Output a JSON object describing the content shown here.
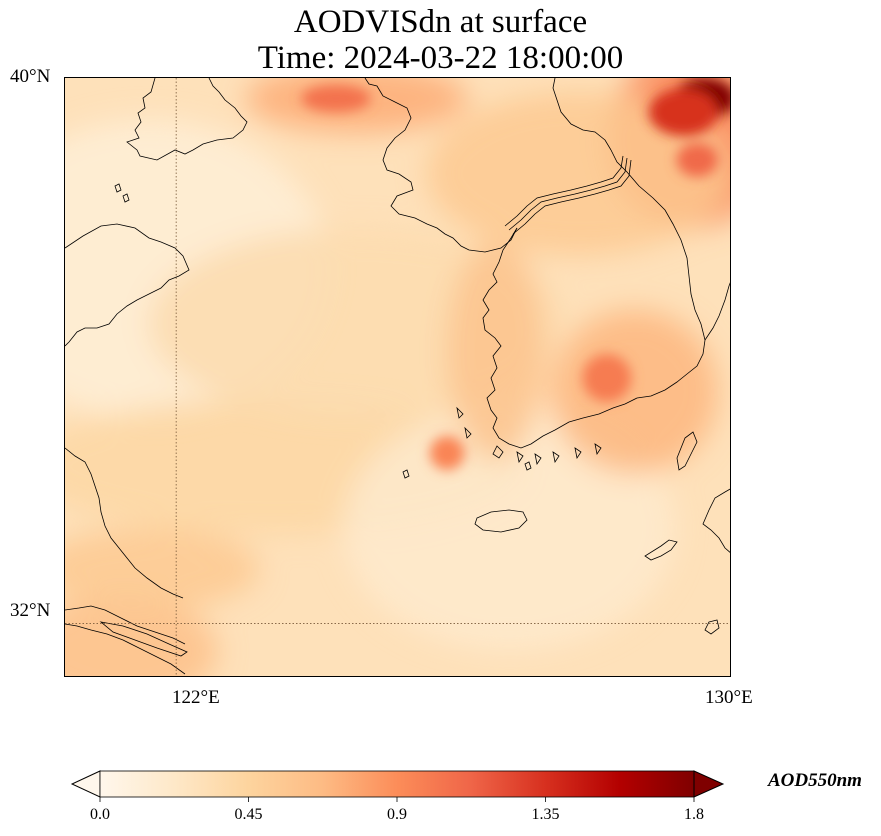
{
  "title": {
    "line1": "AODVISdn at surface",
    "line2": "Time: 2024-03-22 18:00:00"
  },
  "map": {
    "lon_range": [
      120.4,
      130.0
    ],
    "lat_range": [
      31.2,
      40.0
    ],
    "gridlines": {
      "lon": [
        122
      ],
      "lat": [
        32
      ],
      "style": "dotted"
    },
    "y_ticks": [
      "40°N",
      "32°N"
    ],
    "x_ticks": [
      "122°E",
      "130°E"
    ],
    "features": [
      "coastline",
      "korea-border",
      "jeju-island",
      "yangtze-estuary"
    ]
  },
  "field": {
    "variable": "AODVISdn",
    "background_value": 0.3,
    "min_value": 0.08,
    "max_value": 1.8,
    "high_regions": [
      "northeast-korea-china-border",
      "bohai-north",
      "south-korea-east-coast",
      "west-korea-coast"
    ]
  },
  "colorbar": {
    "label": "AOD550nm",
    "colormap": "OrRd",
    "min": 0.0,
    "max": 1.8,
    "extend": "both",
    "ticks": [
      "0.0",
      "0.45",
      "0.9",
      "1.35",
      "1.8"
    ],
    "colors": [
      "#fff7ec",
      "#fee8c8",
      "#fdd49e",
      "#fdbb84",
      "#fc8d59",
      "#ef6548",
      "#d7301f",
      "#b30000",
      "#7f0000"
    ]
  }
}
